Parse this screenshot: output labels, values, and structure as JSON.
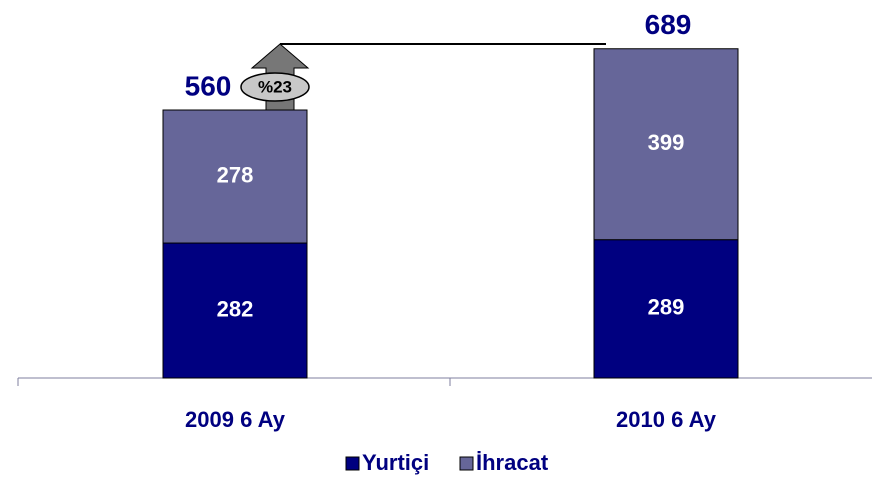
{
  "chart_data": {
    "type": "stacked_bar",
    "categories": [
      "2009 6 Ay",
      "2010 6 Ay"
    ],
    "series": [
      {
        "name": "Yurtiçi",
        "color": "#000080",
        "values": [
          282,
          289
        ]
      },
      {
        "name": "İhracat",
        "color": "#666699",
        "values": [
          278,
          399
        ]
      }
    ],
    "totals": [
      560,
      689
    ],
    "annotation": "%23",
    "ylim": [
      0,
      700
    ]
  }
}
